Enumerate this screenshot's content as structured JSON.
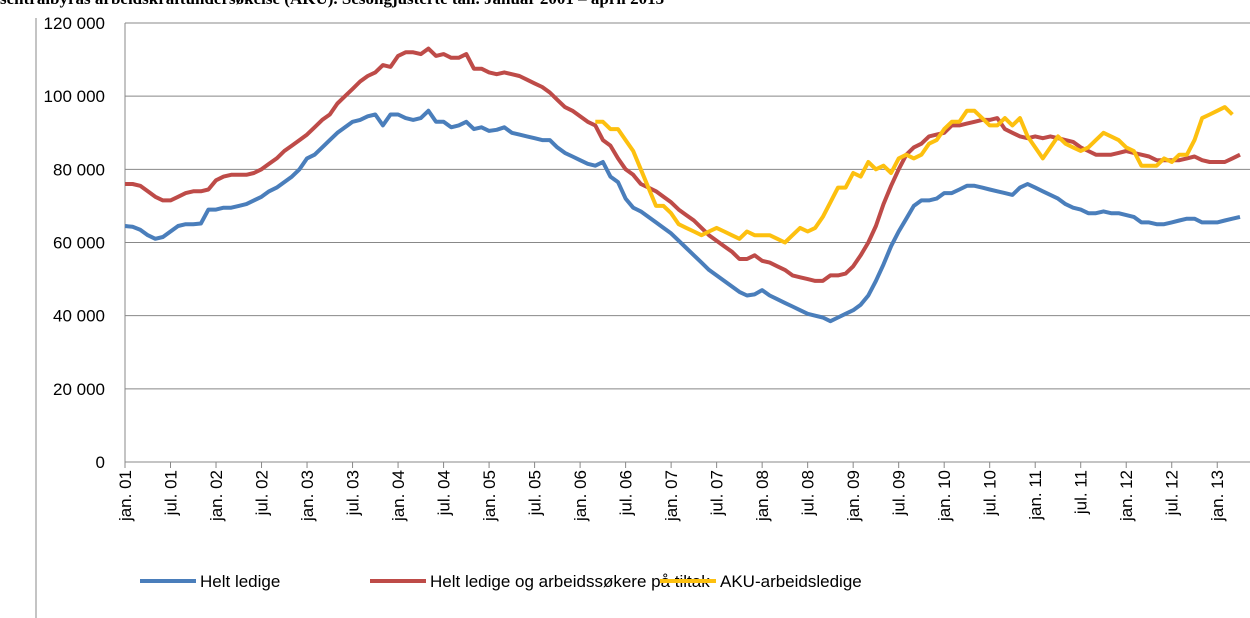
{
  "chart_data": {
    "type": "line",
    "title": "sentralbyrås arbeidskraftundersøkelse (AKU). Sesongjusterte tall. Januar 2001 – april 2013",
    "categories": [
      "jan. 01",
      null,
      null,
      null,
      null,
      null,
      "jul. 01",
      null,
      null,
      null,
      null,
      null,
      "jan. 02",
      null,
      null,
      null,
      null,
      null,
      "jul. 02",
      null,
      null,
      null,
      null,
      null,
      "jan. 03",
      null,
      null,
      null,
      null,
      null,
      "jul. 03",
      null,
      null,
      null,
      null,
      null,
      "jan. 04",
      null,
      null,
      null,
      null,
      null,
      "jul. 04",
      null,
      null,
      null,
      null,
      null,
      "jan. 05",
      null,
      null,
      null,
      null,
      null,
      "jul. 05",
      null,
      null,
      null,
      null,
      null,
      "jan. 06",
      null,
      null,
      null,
      null,
      null,
      "jul. 06",
      null,
      null,
      null,
      null,
      null,
      "jan. 07",
      null,
      null,
      null,
      null,
      null,
      "jul. 07",
      null,
      null,
      null,
      null,
      null,
      "jan. 08",
      null,
      null,
      null,
      null,
      null,
      "jul. 08",
      null,
      null,
      null,
      null,
      null,
      "jan. 09",
      null,
      null,
      null,
      null,
      null,
      "jul. 09",
      null,
      null,
      null,
      null,
      null,
      "jan. 10",
      null,
      null,
      null,
      null,
      null,
      "jul. 10",
      null,
      null,
      null,
      null,
      null,
      "jan. 11",
      null,
      null,
      null,
      null,
      null,
      "jul. 11",
      null,
      null,
      null,
      null,
      null,
      "jan. 12",
      null,
      null,
      null,
      null,
      null,
      "jul. 12",
      null,
      null,
      null,
      null,
      null,
      "jan. 13",
      null,
      null,
      null
    ],
    "series": [
      {
        "name": "Helt ledige",
        "color": "#4a7ebb",
        "values": [
          64500,
          64300,
          63500,
          62000,
          61000,
          61500,
          63000,
          64500,
          65000,
          65000,
          65200,
          69000,
          69000,
          69500,
          69500,
          70000,
          70500,
          71500,
          72500,
          74000,
          75000,
          76500,
          78000,
          80000,
          83000,
          84000,
          86000,
          88000,
          90000,
          91500,
          93000,
          93500,
          94500,
          95000,
          92000,
          95000,
          95000,
          94000,
          93500,
          94000,
          96000,
          93000,
          93000,
          91500,
          92000,
          93000,
          91000,
          91500,
          90500,
          90800,
          91500,
          90000,
          89500,
          89000,
          88500,
          88000,
          88000,
          86000,
          84500,
          83500,
          82500,
          81500,
          81000,
          82000,
          78000,
          76500,
          72000,
          69500,
          68500,
          67000,
          65500,
          64000,
          62500,
          60500,
          58500,
          56500,
          54500,
          52500,
          51000,
          49500,
          48000,
          46500,
          45500,
          45800,
          47000,
          45500,
          44500,
          43500,
          42500,
          41500,
          40500,
          40000,
          39500,
          38500,
          39500,
          40500,
          41500,
          43000,
          45500,
          49500,
          54000,
          59000,
          63000,
          66500,
          70000,
          71500,
          71500,
          72000,
          73500,
          73500,
          74500,
          75500,
          75500,
          75000,
          74500,
          74000,
          73500,
          73000,
          75000,
          76000,
          75000,
          74000,
          73000,
          72000,
          70500,
          69500,
          69000,
          68000,
          68000,
          68500,
          68000,
          68000,
          67500,
          67000,
          65500,
          65500,
          65000,
          65000,
          65500,
          66000,
          66500,
          66500,
          65500,
          65500,
          65500,
          66000,
          66500,
          67000
        ]
      },
      {
        "name": "Helt ledige og arbeidssøkere på tiltak",
        "color": "#be4b48",
        "values": [
          76000,
          76000,
          75500,
          74000,
          72500,
          71500,
          71500,
          72500,
          73500,
          74000,
          74000,
          74500,
          77000,
          78000,
          78500,
          78500,
          78500,
          79000,
          80000,
          81500,
          83000,
          85000,
          86500,
          88000,
          89500,
          91500,
          93500,
          95000,
          98000,
          100000,
          102000,
          104000,
          105500,
          106500,
          108500,
          108000,
          111000,
          112000,
          112000,
          111500,
          113000,
          111000,
          111500,
          110500,
          110500,
          111500,
          107500,
          107500,
          106500,
          106000,
          106500,
          106000,
          105500,
          104500,
          103500,
          102500,
          101000,
          99000,
          97000,
          96000,
          94500,
          93000,
          92000,
          88000,
          86500,
          83000,
          80000,
          78500,
          76000,
          75000,
          74000,
          72500,
          71000,
          69000,
          67500,
          66000,
          64000,
          62000,
          60500,
          59000,
          57500,
          55500,
          55500,
          56500,
          55000,
          54500,
          53500,
          52500,
          51000,
          50500,
          50000,
          49500,
          49500,
          51000,
          51000,
          51500,
          53500,
          56500,
          60000,
          64500,
          70500,
          75500,
          80000,
          84000,
          86000,
          87000,
          89000,
          89500,
          90000,
          92000,
          92000,
          92500,
          93000,
          93500,
          93500,
          94000,
          91000,
          90000,
          89000,
          88500,
          89000,
          88500,
          89000,
          88500,
          88000,
          87500,
          86000,
          85000,
          84000,
          84000,
          84000,
          84500,
          85000,
          84500,
          84000,
          83500,
          82500,
          82500,
          82500,
          82500,
          83000,
          83500,
          82500,
          82000,
          82000,
          82000,
          83000,
          84000
        ]
      },
      {
        "name": "AKU-arbeidsledige",
        "color": "#fdc00f",
        "values": [
          null,
          null,
          null,
          null,
          null,
          null,
          null,
          null,
          null,
          null,
          null,
          null,
          null,
          null,
          null,
          null,
          null,
          null,
          null,
          null,
          null,
          null,
          null,
          null,
          null,
          null,
          null,
          null,
          null,
          null,
          null,
          null,
          null,
          null,
          null,
          null,
          null,
          null,
          null,
          null,
          null,
          null,
          null,
          null,
          null,
          null,
          null,
          null,
          null,
          null,
          null,
          null,
          null,
          null,
          null,
          null,
          null,
          null,
          null,
          null,
          null,
          null,
          93000,
          93000,
          91000,
          91000,
          88000,
          85000,
          80000,
          75000,
          70000,
          70000,
          68000,
          65000,
          64000,
          63000,
          62000,
          63000,
          64000,
          63000,
          62000,
          61000,
          63000,
          62000,
          62000,
          62000,
          61000,
          60000,
          62000,
          64000,
          63000,
          64000,
          67000,
          71000,
          75000,
          75000,
          79000,
          78000,
          82000,
          80000,
          81000,
          79000,
          83000,
          84000,
          83000,
          84000,
          87000,
          88000,
          91000,
          93000,
          93000,
          96000,
          96000,
          94000,
          92000,
          92000,
          94000,
          92000,
          94000,
          89000,
          86000,
          83000,
          86000,
          89000,
          87000,
          86000,
          85000,
          86000,
          88000,
          90000,
          89000,
          88000,
          86000,
          85000,
          81000,
          81000,
          81000,
          83000,
          82000,
          84000,
          84000,
          88000,
          94000,
          95000,
          96000,
          97000,
          95000,
          null
        ]
      }
    ],
    "ylim": [
      0,
      120000
    ],
    "yticks": [
      0,
      {
        "value": 20000,
        "label": "20 000"
      },
      {
        "value": 40000,
        "label": "40 000"
      },
      {
        "value": 60000,
        "label": "60 000"
      },
      {
        "value": 80000,
        "label": "80 000"
      },
      {
        "value": 100000,
        "label": "100 000"
      },
      {
        "value": 120000,
        "label": "120 000"
      }
    ],
    "grid": true,
    "legend": "bottom"
  }
}
